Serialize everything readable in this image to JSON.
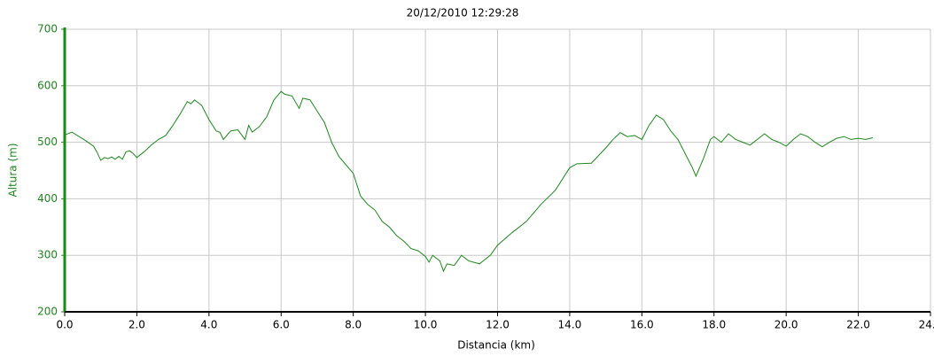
{
  "chart_data": {
    "type": "line",
    "title": "20/12/2010 12:29:28",
    "x_label": "Distancia (km)",
    "y_label": "Altura (m)",
    "color": "#1a8a1a",
    "y_axis_color": "#1a8a1a",
    "grid": true,
    "x": [
      0.0,
      0.2,
      0.4,
      0.6,
      0.8,
      0.9,
      1.0,
      1.1,
      1.2,
      1.3,
      1.4,
      1.5,
      1.6,
      1.7,
      1.8,
      1.9,
      2.0,
      2.2,
      2.4,
      2.6,
      2.8,
      3.0,
      3.2,
      3.4,
      3.5,
      3.6,
      3.8,
      4.0,
      4.2,
      4.3,
      4.4,
      4.6,
      4.8,
      5.0,
      5.1,
      5.2,
      5.4,
      5.6,
      5.8,
      6.0,
      6.1,
      6.3,
      6.5,
      6.6,
      6.8,
      7.0,
      7.2,
      7.4,
      7.6,
      7.8,
      8.0,
      8.2,
      8.4,
      8.6,
      8.8,
      9.0,
      9.2,
      9.4,
      9.6,
      9.8,
      10.0,
      10.1,
      10.2,
      10.4,
      10.5,
      10.6,
      10.8,
      11.0,
      11.2,
      11.5,
      11.8,
      12.0,
      12.4,
      12.8,
      13.2,
      13.6,
      14.0,
      14.2,
      14.6,
      15.0,
      15.2,
      15.4,
      15.6,
      15.8,
      16.0,
      16.2,
      16.4,
      16.6,
      16.8,
      17.0,
      17.2,
      17.4,
      17.5,
      17.7,
      17.9,
      18.0,
      18.2,
      18.4,
      18.6,
      18.8,
      19.0,
      19.2,
      19.4,
      19.6,
      19.8,
      20.0,
      20.2,
      20.4,
      20.6,
      20.8,
      21.0,
      21.2,
      21.4,
      21.6,
      21.8,
      22.0,
      22.2,
      22.4
    ],
    "values": [
      513,
      518,
      510,
      502,
      493,
      482,
      468,
      473,
      471,
      474,
      470,
      475,
      470,
      483,
      485,
      480,
      473,
      483,
      495,
      505,
      512,
      530,
      550,
      572,
      568,
      575,
      565,
      540,
      520,
      518,
      505,
      520,
      522,
      505,
      530,
      518,
      528,
      545,
      575,
      590,
      585,
      582,
      560,
      578,
      575,
      555,
      535,
      500,
      475,
      460,
      445,
      405,
      390,
      380,
      360,
      350,
      335,
      325,
      312,
      308,
      298,
      288,
      300,
      290,
      272,
      285,
      282,
      300,
      290,
      285,
      300,
      318,
      340,
      360,
      390,
      415,
      455,
      462,
      463,
      490,
      505,
      517,
      510,
      512,
      505,
      530,
      548,
      540,
      520,
      505,
      480,
      455,
      440,
      470,
      505,
      510,
      500,
      515,
      505,
      500,
      495,
      505,
      515,
      505,
      500,
      493,
      505,
      515,
      510,
      500,
      492,
      500,
      507,
      510,
      505,
      507,
      505,
      508
    ],
    "xlim": [
      0,
      24
    ],
    "ylim": [
      200,
      700
    ],
    "xticks": [
      {
        "value": 0,
        "label": "0.0"
      },
      {
        "value": 2,
        "label": "2.0"
      },
      {
        "value": 4,
        "label": "4.0"
      },
      {
        "value": 6,
        "label": "6.0"
      },
      {
        "value": 8,
        "label": "8.0"
      },
      {
        "value": 10,
        "label": "10.0"
      },
      {
        "value": 12,
        "label": "12.0"
      },
      {
        "value": 14,
        "label": "14.0"
      },
      {
        "value": 16,
        "label": "16.0"
      },
      {
        "value": 18,
        "label": "18.0"
      },
      {
        "value": 20,
        "label": "20.0"
      },
      {
        "value": 22,
        "label": "22.0"
      },
      {
        "value": 24,
        "label": "24.0"
      }
    ],
    "yticks": [
      200,
      300,
      400,
      500,
      600,
      700
    ]
  }
}
